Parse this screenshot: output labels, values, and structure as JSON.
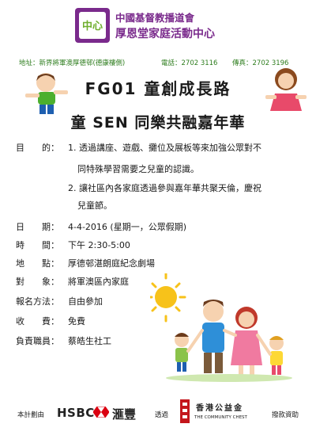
{
  "header": {
    "logo_mark": "中心",
    "org_line1": "中國基督教播道會",
    "org_line2": "厚恩堂家庭活動中心",
    "address": "地址：新界將軍澳厚德邨(德康樓側)",
    "phone": "電話：2702 3116",
    "fax": "傳真：2702 3196"
  },
  "titles": {
    "code_title": "FG01 童創成長路",
    "main_title": "童 SEN 同樂共融嘉年華"
  },
  "details": {
    "purpose_label": "目　　的：",
    "purpose_1a": "1. 透過講座、遊戲、攤位及展板等來加強公眾對不",
    "purpose_1b": "同特殊學習需要之兒童的認識。",
    "purpose_2a": "2. 讓社區內各家庭透過參與嘉年華共聚天倫，慶祝",
    "purpose_2b": "兒童節。",
    "date_label": "日　　期：",
    "date_value": "4-4-2016 (星期一，公眾假期)",
    "time_label": "時　　間：",
    "time_value": "下午 2:30-5:00",
    "venue_label": "地　　點：",
    "venue_value": "厚德邨湛朗庭紀念劇場",
    "target_label": "對　　象：",
    "target_value": "將軍澳區內家庭",
    "signup_label": "報名方法：",
    "signup_value": "自由參加",
    "fee_label": "收　　費：",
    "fee_value": "免費",
    "staff_label": "負責職員：",
    "staff_value": "蔡皓生社工"
  },
  "footer": {
    "sponsor_label": "本計劃由",
    "hsbc_en": "HSBC",
    "hsbc_cn": "滙豐",
    "via_label": "透過",
    "chest_cn": "香港公益金",
    "chest_en": "THE COMMUNITY CHEST",
    "funding_label": "撥款資助"
  },
  "colors": {
    "org_purple": "#7a2a8c",
    "logo_green": "#6fae2e",
    "hsbc_red": "#db0011",
    "chest_red": "#c4161c",
    "sun_yellow": "#f7c21a"
  }
}
